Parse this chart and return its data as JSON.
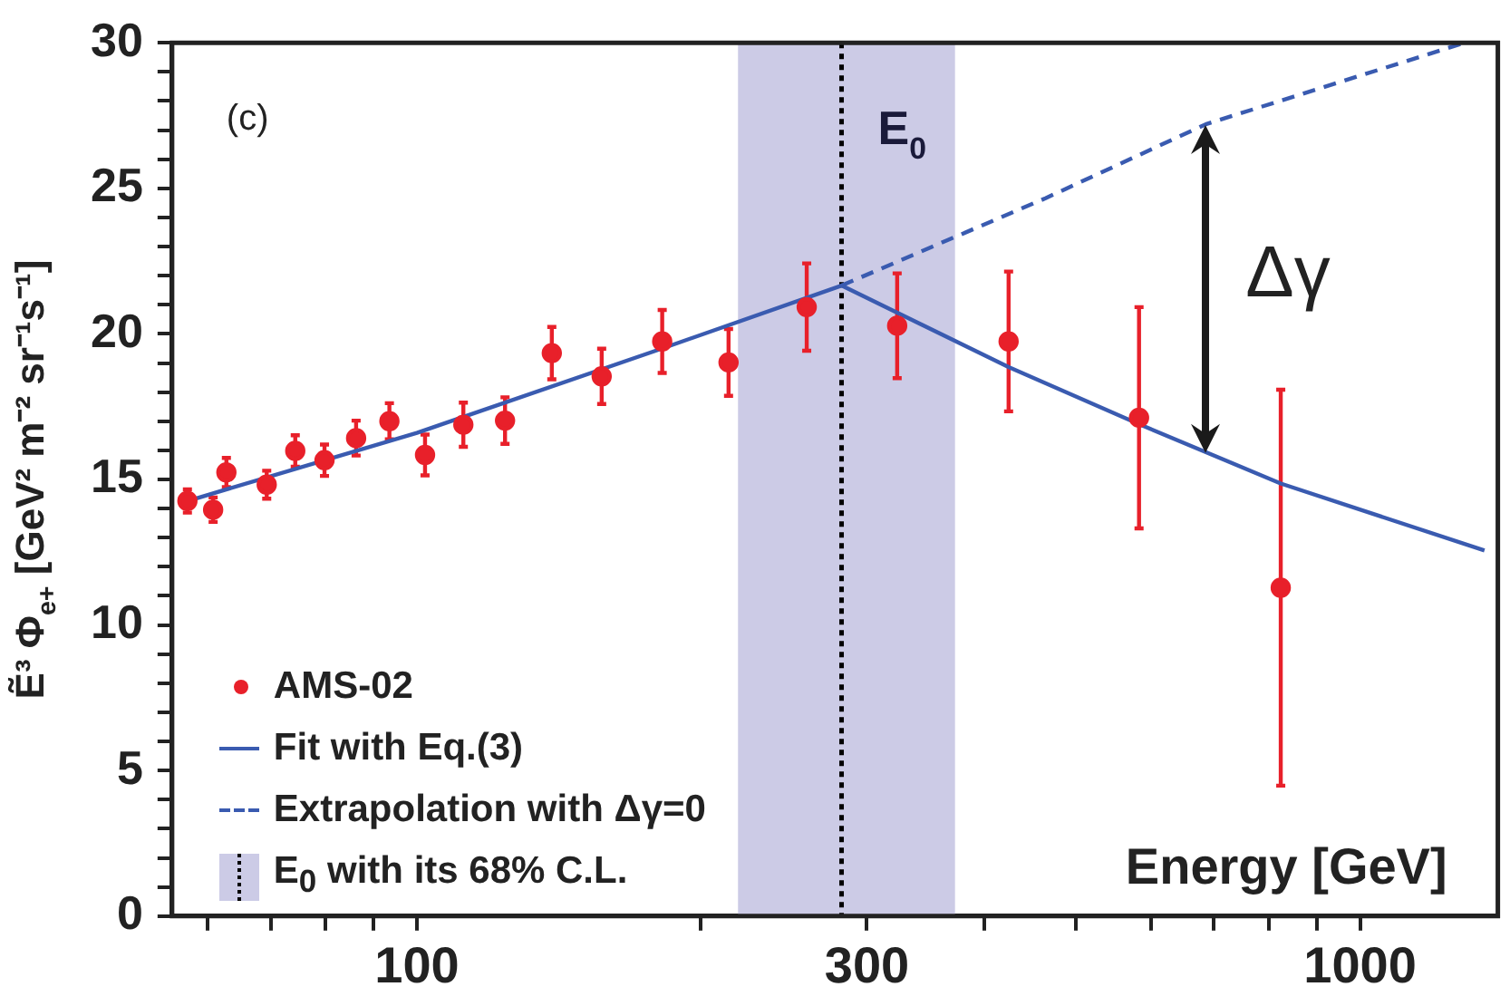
{
  "chart_data": {
    "type": "scatter",
    "xlabel": "Energy [GeV]",
    "ylabel": "Ẽ³ Φ$_{e+}$ [GeV² m⁻² sr⁻¹s⁻¹]",
    "log": "x",
    "xlim": [
      55,
      1400
    ],
    "ylim": [
      0,
      30
    ],
    "xticks": [
      {
        "value": 60,
        "label": null
      },
      {
        "value": 70,
        "label": null
      },
      {
        "value": 80,
        "label": null
      },
      {
        "value": 90,
        "label": null
      },
      100,
      {
        "value": 200,
        "label": null
      },
      300,
      {
        "value": 400,
        "label": null
      },
      {
        "value": 500,
        "label": null
      },
      {
        "value": 600,
        "label": null
      },
      {
        "value": 700,
        "label": null
      },
      {
        "value": 800,
        "label": null
      },
      {
        "value": 900,
        "label": null
      },
      1000
    ],
    "yticks": [
      0,
      {
        "value": 1,
        "label": null
      },
      {
        "value": 2,
        "label": null
      },
      {
        "value": 3,
        "label": null
      },
      {
        "value": 4,
        "label": null
      },
      5,
      {
        "value": 6,
        "label": null
      },
      {
        "value": 7,
        "label": null
      },
      {
        "value": 8,
        "label": null
      },
      {
        "value": 9,
        "label": null
      },
      10,
      {
        "value": 11,
        "label": null
      },
      {
        "value": 12,
        "label": null
      },
      {
        "value": 13,
        "label": null
      },
      {
        "value": 14,
        "label": null
      },
      15,
      {
        "value": 16,
        "label": null
      },
      {
        "value": 17,
        "label": null
      },
      {
        "value": 18,
        "label": null
      },
      {
        "value": 19,
        "label": null
      },
      20,
      {
        "value": 21,
        "label": null
      },
      {
        "value": 22,
        "label": null
      },
      {
        "value": 23,
        "label": null
      },
      {
        "value": 24,
        "label": null
      },
      25,
      {
        "value": 26,
        "label": null
      },
      {
        "value": 27,
        "label": null
      },
      {
        "value": 28,
        "label": null
      },
      {
        "value": 29,
        "label": null
      },
      30
    ],
    "grid": false,
    "legend": "bottom left",
    "series": [
      {
        "name": "AMS-02",
        "type": "scatter",
        "marker": "circle",
        "color": "#e8202a",
        "x": [
          57.1,
          60.8,
          62.8,
          69.3,
          74.3,
          79.8,
          86.2,
          93.5,
          102,
          112,
          124,
          139,
          157,
          182,
          214,
          259,
          323,
          424,
          583,
          824
        ],
        "values": [
          14.26,
          13.96,
          15.24,
          14.82,
          15.98,
          15.66,
          16.42,
          17.0,
          15.84,
          16.88,
          17.02,
          19.34,
          18.54,
          19.74,
          19.02,
          20.92,
          20.28,
          19.74,
          17.12,
          11.28
        ],
        "errors": [
          0.4,
          0.42,
          0.5,
          0.48,
          0.54,
          0.54,
          0.6,
          0.62,
          0.7,
          0.76,
          0.8,
          0.9,
          0.95,
          1.08,
          1.15,
          1.5,
          1.8,
          2.4,
          3.8,
          6.8
        ]
      },
      {
        "name": "Fit with Eq.(3)",
        "type": "line",
        "marker": "none",
        "line_style": "solid",
        "color": "#3a5bb0",
        "x": [
          57.1,
          100,
          182,
          282,
          424,
          583,
          824,
          1355
        ],
        "values": [
          14.26,
          16.6,
          19.5,
          21.66,
          18.86,
          16.9,
          14.86,
          12.56
        ]
      },
      {
        "name": "Extrapolation with Δγ=0",
        "type": "line",
        "marker": "none",
        "line_style": "dashed",
        "color": "#3a5bb0",
        "x": [
          282,
          464,
          686,
          1291
        ],
        "values": [
          21.66,
          24.66,
          27.2,
          30
        ]
      }
    ],
    "bands": [
      {
        "axis": "x",
        "from": 219,
        "to": 372,
        "label": "E$_{0}$ with its 68% C.L.",
        "color": "#cccbe6"
      }
    ],
    "ref_lines": [
      {
        "axis": "x",
        "value": 282,
        "label": "E$_{0}$",
        "line_style": "dotted",
        "color": "#000000"
      }
    ],
    "annotations": [
      "(c)",
      "Δγ"
    ]
  }
}
